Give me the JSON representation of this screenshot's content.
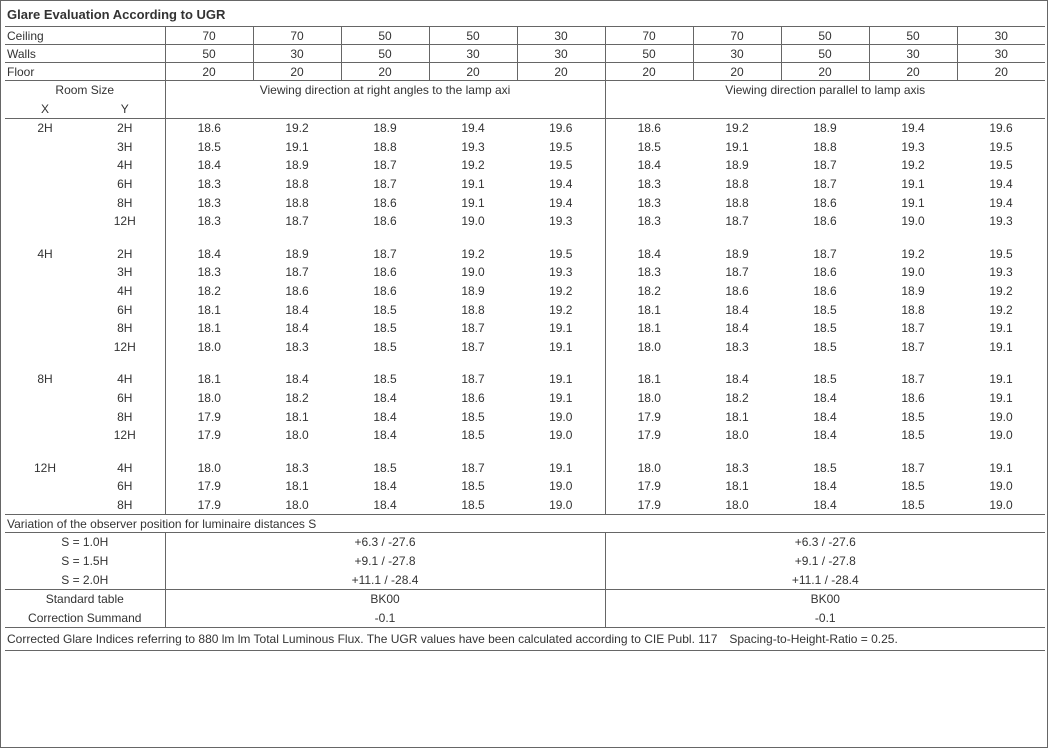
{
  "title": "Glare Evaluation According to UGR",
  "header": {
    "labels": {
      "ceiling": "Ceiling",
      "walls": "Walls",
      "floor": "Floor"
    },
    "ceiling": [
      "70",
      "70",
      "50",
      "50",
      "30",
      "70",
      "70",
      "50",
      "50",
      "30"
    ],
    "walls": [
      "50",
      "30",
      "50",
      "30",
      "30",
      "50",
      "30",
      "50",
      "30",
      "30"
    ],
    "floor": [
      "20",
      "20",
      "20",
      "20",
      "20",
      "20",
      "20",
      "20",
      "20",
      "20"
    ]
  },
  "room_size_label": "Room Size",
  "axis_labels": {
    "x": "X",
    "y": "Y"
  },
  "viewing_labels": {
    "left": "Viewing direction at right angles to the lamp axi",
    "right": "Viewing direction parallel to lamp axis"
  },
  "groups": [
    {
      "x": "2H",
      "rows": [
        {
          "y": "2H",
          "l": [
            "18.6",
            "19.2",
            "18.9",
            "19.4",
            "19.6"
          ],
          "r": [
            "18.6",
            "19.2",
            "18.9",
            "19.4",
            "19.6"
          ]
        },
        {
          "y": "3H",
          "l": [
            "18.5",
            "19.1",
            "18.8",
            "19.3",
            "19.5"
          ],
          "r": [
            "18.5",
            "19.1",
            "18.8",
            "19.3",
            "19.5"
          ]
        },
        {
          "y": "4H",
          "l": [
            "18.4",
            "18.9",
            "18.7",
            "19.2",
            "19.5"
          ],
          "r": [
            "18.4",
            "18.9",
            "18.7",
            "19.2",
            "19.5"
          ]
        },
        {
          "y": "6H",
          "l": [
            "18.3",
            "18.8",
            "18.7",
            "19.1",
            "19.4"
          ],
          "r": [
            "18.3",
            "18.8",
            "18.7",
            "19.1",
            "19.4"
          ]
        },
        {
          "y": "8H",
          "l": [
            "18.3",
            "18.8",
            "18.6",
            "19.1",
            "19.4"
          ],
          "r": [
            "18.3",
            "18.8",
            "18.6",
            "19.1",
            "19.4"
          ]
        },
        {
          "y": "12H",
          "l": [
            "18.3",
            "18.7",
            "18.6",
            "19.0",
            "19.3"
          ],
          "r": [
            "18.3",
            "18.7",
            "18.6",
            "19.0",
            "19.3"
          ]
        }
      ]
    },
    {
      "x": "4H",
      "rows": [
        {
          "y": "2H",
          "l": [
            "18.4",
            "18.9",
            "18.7",
            "19.2",
            "19.5"
          ],
          "r": [
            "18.4",
            "18.9",
            "18.7",
            "19.2",
            "19.5"
          ]
        },
        {
          "y": "3H",
          "l": [
            "18.3",
            "18.7",
            "18.6",
            "19.0",
            "19.3"
          ],
          "r": [
            "18.3",
            "18.7",
            "18.6",
            "19.0",
            "19.3"
          ]
        },
        {
          "y": "4H",
          "l": [
            "18.2",
            "18.6",
            "18.6",
            "18.9",
            "19.2"
          ],
          "r": [
            "18.2",
            "18.6",
            "18.6",
            "18.9",
            "19.2"
          ]
        },
        {
          "y": "6H",
          "l": [
            "18.1",
            "18.4",
            "18.5",
            "18.8",
            "19.2"
          ],
          "r": [
            "18.1",
            "18.4",
            "18.5",
            "18.8",
            "19.2"
          ]
        },
        {
          "y": "8H",
          "l": [
            "18.1",
            "18.4",
            "18.5",
            "18.7",
            "19.1"
          ],
          "r": [
            "18.1",
            "18.4",
            "18.5",
            "18.7",
            "19.1"
          ]
        },
        {
          "y": "12H",
          "l": [
            "18.0",
            "18.3",
            "18.5",
            "18.7",
            "19.1"
          ],
          "r": [
            "18.0",
            "18.3",
            "18.5",
            "18.7",
            "19.1"
          ]
        }
      ]
    },
    {
      "x": "8H",
      "rows": [
        {
          "y": "4H",
          "l": [
            "18.1",
            "18.4",
            "18.5",
            "18.7",
            "19.1"
          ],
          "r": [
            "18.1",
            "18.4",
            "18.5",
            "18.7",
            "19.1"
          ]
        },
        {
          "y": "6H",
          "l": [
            "18.0",
            "18.2",
            "18.4",
            "18.6",
            "19.1"
          ],
          "r": [
            "18.0",
            "18.2",
            "18.4",
            "18.6",
            "19.1"
          ]
        },
        {
          "y": "8H",
          "l": [
            "17.9",
            "18.1",
            "18.4",
            "18.5",
            "19.0"
          ],
          "r": [
            "17.9",
            "18.1",
            "18.4",
            "18.5",
            "19.0"
          ]
        },
        {
          "y": "12H",
          "l": [
            "17.9",
            "18.0",
            "18.4",
            "18.5",
            "19.0"
          ],
          "r": [
            "17.9",
            "18.0",
            "18.4",
            "18.5",
            "19.0"
          ]
        }
      ]
    },
    {
      "x": "12H",
      "rows": [
        {
          "y": "4H",
          "l": [
            "18.0",
            "18.3",
            "18.5",
            "18.7",
            "19.1"
          ],
          "r": [
            "18.0",
            "18.3",
            "18.5",
            "18.7",
            "19.1"
          ]
        },
        {
          "y": "6H",
          "l": [
            "17.9",
            "18.1",
            "18.4",
            "18.5",
            "19.0"
          ],
          "r": [
            "17.9",
            "18.1",
            "18.4",
            "18.5",
            "19.0"
          ]
        },
        {
          "y": "8H",
          "l": [
            "17.9",
            "18.0",
            "18.4",
            "18.5",
            "19.0"
          ],
          "r": [
            "17.9",
            "18.0",
            "18.4",
            "18.5",
            "19.0"
          ]
        }
      ]
    }
  ],
  "variation_title": "Variation of the observer position for luminaire distances S",
  "variation_rows": [
    {
      "s": "S = 1.0H",
      "l": "+6.3 / -27.6",
      "r": "+6.3 / -27.6"
    },
    {
      "s": "S = 1.5H",
      "l": "+9.1 / -27.8",
      "r": "+9.1 / -27.8"
    },
    {
      "s": "S = 2.0H",
      "l": "+11.1 / -28.4",
      "r": "+11.1 / -28.4"
    }
  ],
  "std_label": "Standard table",
  "corr_label": "Correction Summand",
  "std_left": "BK00",
  "std_right": "BK00",
  "corr_left": "-0.1",
  "corr_right": "-0.1",
  "footnote": "Corrected Glare Indices referring to 880 lm lm Total Luminous Flux. The UGR values have been calculated according to CIE Publ. 117 Spacing-to-Height-Ratio = 0.25."
}
